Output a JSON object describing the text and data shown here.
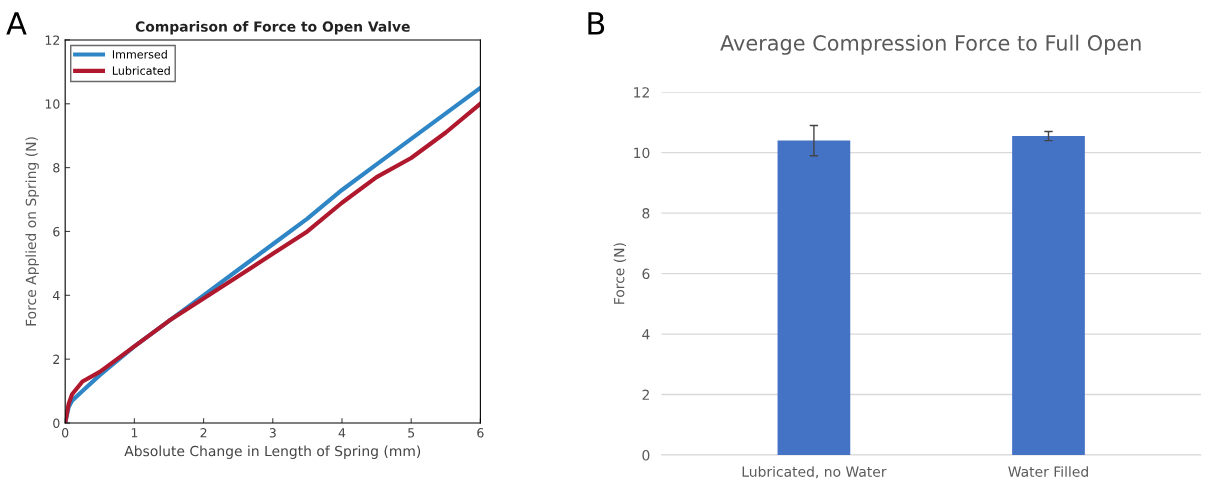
{
  "chart_data": [
    {
      "type": "line",
      "title": "Comparison of Force to Open Valve",
      "xlabel": "Absolute Change in Length of Spring (mm)",
      "ylabel": "Force Applied on Spring (N)",
      "annotations": [
        "A"
      ],
      "xlim": [
        0,
        6
      ],
      "ylim": [
        0,
        12
      ],
      "xticks": [
        0,
        1,
        2,
        3,
        4,
        5,
        6
      ],
      "yticks": [
        0,
        2,
        4,
        6,
        8,
        10,
        12
      ],
      "grid": false,
      "legend": "top left",
      "series": [
        {
          "name": "Immersed",
          "color": "#2f86c6",
          "x": [
            0,
            0.05,
            0.1,
            0.25,
            0.5,
            1,
            1.5,
            2,
            2.5,
            3,
            3.5,
            4,
            4.5,
            5,
            5.5,
            6
          ],
          "values": [
            0,
            0.5,
            0.7,
            1.0,
            1.5,
            2.4,
            3.2,
            4.0,
            4.8,
            5.6,
            6.4,
            7.3,
            8.1,
            8.9,
            9.7,
            10.5
          ]
        },
        {
          "name": "Lubricated",
          "color": "#b0182e",
          "x": [
            0,
            0.05,
            0.1,
            0.25,
            0.5,
            1,
            1.5,
            2,
            2.5,
            3,
            3.5,
            4,
            4.5,
            5,
            5.5,
            6
          ],
          "values": [
            0,
            0.6,
            0.9,
            1.3,
            1.6,
            2.4,
            3.2,
            3.9,
            4.6,
            5.3,
            6.0,
            6.9,
            7.7,
            8.3,
            9.1,
            10.0
          ]
        }
      ]
    },
    {
      "type": "bar",
      "title": "Average Compression Force to Full Open",
      "ylabel": "Force (N)",
      "annotations": [
        "B"
      ],
      "categories": [
        "Lubricated, no Water",
        "Water Filled"
      ],
      "values": [
        10.4,
        10.55
      ],
      "errors": [
        0.5,
        0.15
      ],
      "color": "#4472c4",
      "ylim": [
        0,
        12
      ],
      "yticks": [
        0,
        2,
        4,
        6,
        8,
        10,
        12
      ],
      "grid": "y"
    }
  ]
}
